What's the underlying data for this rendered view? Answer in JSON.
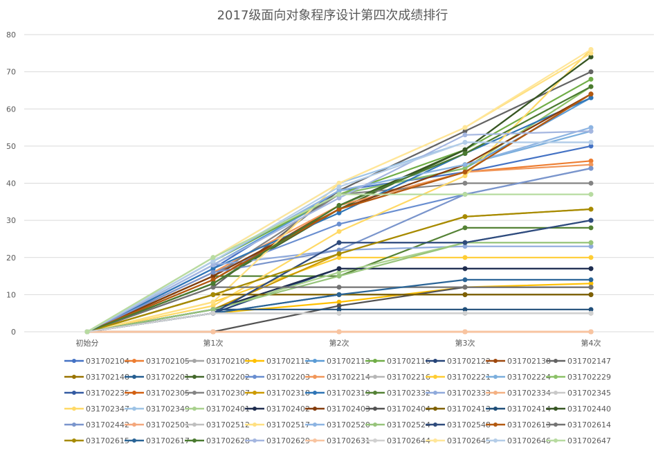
{
  "chart_data": {
    "type": "line",
    "title": "2017级面向对象程序设计第四次成绩排行",
    "xlabel": "",
    "ylabel": "",
    "ylim": [
      0,
      80
    ],
    "yticks": [
      0,
      10,
      20,
      30,
      40,
      50,
      60,
      70,
      80
    ],
    "categories": [
      "初始分",
      "第1次",
      "第2次",
      "第3次",
      "第4次"
    ],
    "grid": true,
    "legend_position": "bottom",
    "series": [
      {
        "name": "031702104",
        "color": "#4472c4",
        "values": [
          0,
          17,
          38,
          43,
          50
        ]
      },
      {
        "name": "031702105",
        "color": "#ed7d31",
        "values": [
          0,
          15,
          33,
          43,
          46
        ]
      },
      {
        "name": "031702109",
        "color": "#a5a5a5",
        "values": [
          0,
          5,
          5,
          5,
          5
        ]
      },
      {
        "name": "031702112",
        "color": "#ffc000",
        "values": [
          0,
          5,
          8,
          12,
          13
        ]
      },
      {
        "name": "031702113",
        "color": "#5b9bd5",
        "values": [
          0,
          18,
          37,
          44,
          63
        ]
      },
      {
        "name": "031702116",
        "color": "#70ad47",
        "values": [
          0,
          19,
          37,
          49,
          68
        ]
      },
      {
        "name": "031702122",
        "color": "#264478",
        "values": [
          0,
          5,
          17,
          17,
          17
        ]
      },
      {
        "name": "031702138",
        "color": "#9e480e",
        "values": [
          0,
          14,
          34,
          43,
          64
        ]
      },
      {
        "name": "031702147",
        "color": "#636363",
        "values": [
          0,
          12,
          38,
          54,
          70
        ]
      },
      {
        "name": "031702148",
        "color": "#997300",
        "values": [
          0,
          10,
          10,
          10,
          10
        ]
      },
      {
        "name": "031702201",
        "color": "#255e91",
        "values": [
          0,
          5,
          10,
          10,
          10
        ]
      },
      {
        "name": "031702202",
        "color": "#43682b",
        "values": [
          0,
          13,
          33,
          49,
          74
        ]
      },
      {
        "name": "031702203",
        "color": "#698ed0",
        "values": [
          0,
          16,
          29,
          37,
          44
        ]
      },
      {
        "name": "031702214",
        "color": "#f1975a",
        "values": [
          0,
          16,
          34,
          43,
          45
        ]
      },
      {
        "name": "031702216",
        "color": "#b7b7b7",
        "values": [
          0,
          5,
          5,
          5,
          5
        ]
      },
      {
        "name": "031702221",
        "color": "#ffcd33",
        "values": [
          0,
          8,
          20,
          20,
          20
        ]
      },
      {
        "name": "031702224",
        "color": "#7cafdd",
        "values": [
          0,
          19,
          38,
          45,
          54
        ]
      },
      {
        "name": "031702229",
        "color": "#8cc168",
        "values": [
          0,
          20,
          37,
          44,
          66
        ]
      },
      {
        "name": "031702235",
        "color": "#335aa1",
        "values": [
          0,
          5,
          24,
          24,
          30
        ]
      },
      {
        "name": "031702305",
        "color": "#d26012",
        "values": [
          0,
          0,
          0,
          0,
          0
        ]
      },
      {
        "name": "031702307",
        "color": "#848484",
        "values": [
          0,
          15,
          37,
          40,
          40
        ]
      },
      {
        "name": "031702318",
        "color": "#cc9a00",
        "values": [
          0,
          6,
          21,
          31,
          33
        ]
      },
      {
        "name": "031702319",
        "color": "#2e75b6",
        "values": [
          0,
          17,
          32,
          48,
          63
        ]
      },
      {
        "name": "031702332",
        "color": "#548235",
        "values": [
          0,
          15,
          15,
          28,
          28
        ]
      },
      {
        "name": "031702333",
        "color": "#8faadc",
        "values": [
          0,
          18,
          22,
          23,
          23
        ]
      },
      {
        "name": "031702334",
        "color": "#f4b183",
        "values": [
          0,
          0,
          0,
          0,
          0
        ]
      },
      {
        "name": "031702345",
        "color": "#c9c9c9",
        "values": [
          0,
          5,
          5,
          5,
          5
        ]
      },
      {
        "name": "031702347",
        "color": "#ffd966",
        "values": [
          0,
          7,
          27,
          42,
          76
        ]
      },
      {
        "name": "031702349",
        "color": "#9dc3e6",
        "values": [
          0,
          20,
          40,
          51,
          51
        ]
      },
      {
        "name": "031702401",
        "color": "#a9d18e",
        "values": [
          0,
          6,
          16,
          24,
          24
        ]
      },
      {
        "name": "031702402",
        "color": "#1f2d4f",
        "values": [
          0,
          6,
          17,
          17,
          17
        ]
      },
      {
        "name": "031702403",
        "color": "#843c0c",
        "values": [
          0,
          15,
          33,
          45,
          64
        ]
      },
      {
        "name": "031702404",
        "color": "#525252",
        "values": [
          0,
          0,
          7,
          12,
          12
        ]
      },
      {
        "name": "031702413",
        "color": "#7f6000",
        "values": [
          0,
          10,
          10,
          10,
          10
        ]
      },
      {
        "name": "031702414",
        "color": "#1f4e79",
        "values": [
          0,
          6,
          6,
          6,
          6
        ]
      },
      {
        "name": "031702440",
        "color": "#375623",
        "values": [
          0,
          13,
          34,
          49,
          74
        ]
      },
      {
        "name": "031702442",
        "color": "#7a95cc",
        "values": [
          0,
          16,
          22,
          37,
          44
        ]
      },
      {
        "name": "031702501",
        "color": "#f4a77c",
        "values": [
          0,
          0,
          0,
          0,
          0
        ]
      },
      {
        "name": "031702512",
        "color": "#bfbfbf",
        "values": [
          0,
          5,
          5,
          5,
          5
        ]
      },
      {
        "name": "031702517",
        "color": "#ffe082",
        "values": [
          0,
          8,
          40,
          55,
          75
        ]
      },
      {
        "name": "031702520",
        "color": "#8db4e2",
        "values": [
          0,
          19,
          38,
          45,
          55
        ]
      },
      {
        "name": "031702524",
        "color": "#97c47b",
        "values": [
          0,
          6,
          15,
          24,
          24
        ]
      },
      {
        "name": "031702548",
        "color": "#2f4b7c",
        "values": [
          0,
          5,
          24,
          24,
          30
        ]
      },
      {
        "name": "031702613",
        "color": "#b35910",
        "values": [
          0,
          14,
          33,
          43,
          64
        ]
      },
      {
        "name": "031702614",
        "color": "#737373",
        "values": [
          0,
          12,
          12,
          12,
          12
        ]
      },
      {
        "name": "031702615",
        "color": "#a68a00",
        "values": [
          0,
          10,
          21,
          31,
          33
        ]
      },
      {
        "name": "031702617",
        "color": "#2a6496",
        "values": [
          0,
          5,
          10,
          14,
          14
        ]
      },
      {
        "name": "031702628",
        "color": "#4a7a30",
        "values": [
          0,
          13,
          34,
          48,
          66
        ]
      },
      {
        "name": "031702629",
        "color": "#a4b6e0",
        "values": [
          0,
          18,
          36,
          53,
          54
        ]
      },
      {
        "name": "031702631",
        "color": "#f8c4a0",
        "values": [
          0,
          0,
          0,
          0,
          0
        ]
      },
      {
        "name": "031702644",
        "color": "#d0d0d0",
        "values": [
          0,
          5,
          5,
          5,
          5
        ]
      },
      {
        "name": "031702645",
        "color": "#ffe699",
        "values": [
          0,
          20,
          40,
          55,
          76
        ]
      },
      {
        "name": "031702646",
        "color": "#b4cde8",
        "values": [
          0,
          19,
          39,
          51,
          51
        ]
      },
      {
        "name": "031702647",
        "color": "#b7dba0",
        "values": [
          0,
          20,
          37,
          37,
          37
        ]
      }
    ]
  }
}
